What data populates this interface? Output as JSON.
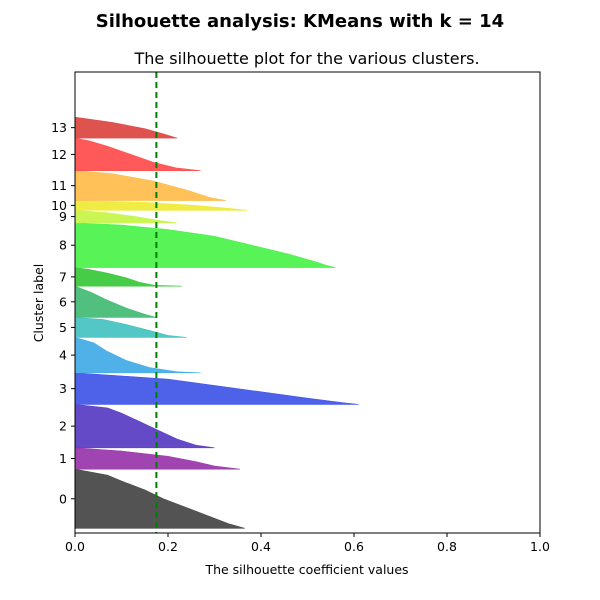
{
  "suptitle": "Silhouette analysis: KMeans with k = 14",
  "chart_data": {
    "type": "area",
    "title": "The silhouette plot for the various clusters.",
    "xlabel": "The silhouette coefficient values",
    "ylabel": "Cluster label",
    "xlim": [
      0.0,
      1.0
    ],
    "ylim": [
      0,
      990
    ],
    "xticks": [
      "0.0",
      "0.2",
      "0.4",
      "0.6",
      "0.8",
      "1.0"
    ],
    "yticks": [
      "0",
      "1",
      "2",
      "3",
      "4",
      "5",
      "6",
      "7",
      "8",
      "9",
      "10",
      "11",
      "12",
      "13"
    ],
    "average_silhouette": 0.175,
    "average_line_color": "#008000",
    "grid": false,
    "clusters": [
      {
        "label": "0",
        "color": "#4a4a4a",
        "start": 10,
        "end": 137,
        "profile": [
          [
            0,
            0.365
          ],
          [
            0.08,
            0.33
          ],
          [
            0.2,
            0.29
          ],
          [
            0.35,
            0.24
          ],
          [
            0.5,
            0.19
          ],
          [
            0.65,
            0.15
          ],
          [
            0.8,
            0.1
          ],
          [
            0.9,
            0.07
          ],
          [
            1,
            0.0
          ]
        ]
      },
      {
        "label": "1",
        "color": "#9b3aad",
        "start": 137,
        "end": 183,
        "profile": [
          [
            0,
            0.355
          ],
          [
            0.15,
            0.3
          ],
          [
            0.35,
            0.26
          ],
          [
            0.6,
            0.2
          ],
          [
            0.85,
            0.1
          ],
          [
            1,
            0.0
          ]
        ]
      },
      {
        "label": "2",
        "color": "#5d40c4",
        "start": 183,
        "end": 276,
        "profile": [
          [
            0,
            0.3
          ],
          [
            0.06,
            0.26
          ],
          [
            0.2,
            0.22
          ],
          [
            0.4,
            0.18
          ],
          [
            0.6,
            0.14
          ],
          [
            0.8,
            0.1
          ],
          [
            0.92,
            0.07
          ],
          [
            1,
            0.0
          ]
        ]
      },
      {
        "label": "3",
        "color": "#4458e8",
        "start": 276,
        "end": 344,
        "profile": [
          [
            0,
            0.61
          ],
          [
            0.05,
            0.58
          ],
          [
            0.2,
            0.5
          ],
          [
            0.5,
            0.35
          ],
          [
            0.8,
            0.2
          ],
          [
            1,
            0.0
          ]
        ]
      },
      {
        "label": "4",
        "color": "#47ade8",
        "start": 344,
        "end": 420,
        "profile": [
          [
            0,
            0.27
          ],
          [
            0.03,
            0.22
          ],
          [
            0.15,
            0.16
          ],
          [
            0.35,
            0.11
          ],
          [
            0.6,
            0.07
          ],
          [
            0.85,
            0.04
          ],
          [
            1,
            0.0
          ]
        ]
      },
      {
        "label": "5",
        "color": "#4ac3c3",
        "start": 420,
        "end": 463,
        "profile": [
          [
            0,
            0.24
          ],
          [
            0.1,
            0.2
          ],
          [
            0.35,
            0.16
          ],
          [
            0.65,
            0.11
          ],
          [
            0.9,
            0.06
          ],
          [
            1,
            0.0
          ]
        ]
      },
      {
        "label": "6",
        "color": "#48bd77",
        "start": 463,
        "end": 530,
        "profile": [
          [
            0,
            0.175
          ],
          [
            0.1,
            0.15
          ],
          [
            0.3,
            0.11
          ],
          [
            0.55,
            0.07
          ],
          [
            0.8,
            0.035
          ],
          [
            1,
            0.0
          ]
        ]
      },
      {
        "label": "7",
        "color": "#3dc93d",
        "start": 530,
        "end": 570,
        "profile": [
          [
            0,
            0.23
          ],
          [
            0.05,
            0.17
          ],
          [
            0.2,
            0.14
          ],
          [
            0.45,
            0.11
          ],
          [
            0.7,
            0.07
          ],
          [
            0.9,
            0.03
          ],
          [
            1,
            0.0
          ]
        ]
      },
      {
        "label": "8",
        "color": "#4ef24e",
        "start": 570,
        "end": 666,
        "profile": [
          [
            0,
            0.56
          ],
          [
            0.05,
            0.54
          ],
          [
            0.12,
            0.52
          ],
          [
            0.3,
            0.46
          ],
          [
            0.5,
            0.38
          ],
          [
            0.7,
            0.3
          ],
          [
            0.85,
            0.2
          ],
          [
            0.95,
            0.1
          ],
          [
            1,
            0.0
          ]
        ]
      },
      {
        "label": "9",
        "color": "#c6f54c",
        "start": 666,
        "end": 693,
        "profile": [
          [
            0,
            0.22
          ],
          [
            0.2,
            0.18
          ],
          [
            0.5,
            0.13
          ],
          [
            0.8,
            0.07
          ],
          [
            1,
            0.0
          ]
        ]
      },
      {
        "label": "10",
        "color": "#eeeb3c",
        "start": 693,
        "end": 714,
        "profile": [
          [
            0,
            0.37
          ],
          [
            0.2,
            0.33
          ],
          [
            0.5,
            0.26
          ],
          [
            0.8,
            0.15
          ],
          [
            1,
            0.0
          ]
        ]
      },
      {
        "label": "11",
        "color": "#ffbe4f",
        "start": 714,
        "end": 778,
        "profile": [
          [
            0,
            0.325
          ],
          [
            0.1,
            0.29
          ],
          [
            0.35,
            0.24
          ],
          [
            0.65,
            0.17
          ],
          [
            0.9,
            0.08
          ],
          [
            1,
            0.0
          ]
        ]
      },
      {
        "label": "12",
        "color": "#ff5050",
        "start": 778,
        "end": 848,
        "profile": [
          [
            0,
            0.27
          ],
          [
            0.08,
            0.22
          ],
          [
            0.25,
            0.17
          ],
          [
            0.5,
            0.12
          ],
          [
            0.75,
            0.07
          ],
          [
            0.92,
            0.03
          ],
          [
            1,
            0.0
          ]
        ]
      },
      {
        "label": "13",
        "color": "#dd4a46",
        "start": 848,
        "end": 893,
        "profile": [
          [
            0,
            0.22
          ],
          [
            0.2,
            0.19
          ],
          [
            0.45,
            0.15
          ],
          [
            0.75,
            0.08
          ],
          [
            1,
            0.0
          ]
        ]
      }
    ]
  }
}
